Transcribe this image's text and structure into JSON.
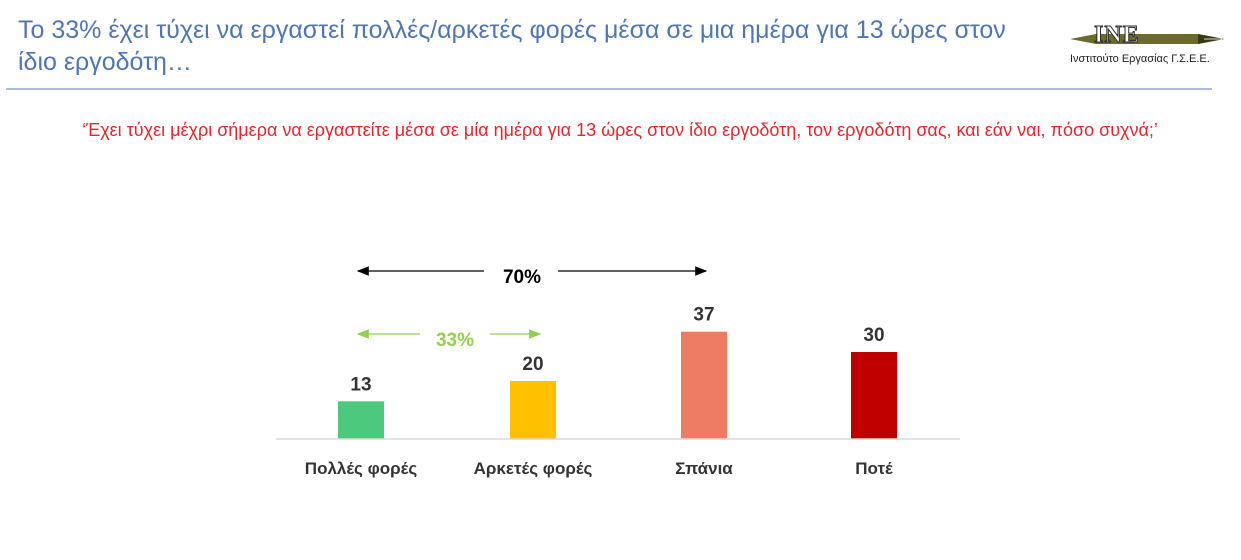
{
  "header": {
    "title": "Το 33% έχει τύχει να εργαστεί πολλές/αρκετές φορές μέσα σε μια ημέρα για 13 ώρες στον ίδιο εργοδότη…",
    "logo_text": "INE",
    "logo_subtitle": "Ινστιτούτο Εργασίας Γ.Σ.Ε.Ε."
  },
  "question": "‘Έχει τύχει μέχρι σήμερα να εργαστείτε μέσα σε μία ημέρα για 13 ώρες στον ίδιο εργοδότη, τον εργοδότη σας, και εάν ναι, πόσο συχνά;’",
  "colors": {
    "title": "#4f75b8",
    "question": "#e8252b",
    "bars": [
      "#4dc97e",
      "#ffc000",
      "#ee7b63",
      "#c00000"
    ],
    "bracket_33": "#92d050",
    "bracket_70": "#000000"
  },
  "chart_data": {
    "type": "bar",
    "categories": [
      "Πολλές φορές",
      "Αρκετές φορές",
      "Σπάνια",
      "Ποτέ"
    ],
    "values": [
      13,
      20,
      37,
      30
    ],
    "ylim": [
      0,
      40
    ],
    "grid": false,
    "annotations": [
      {
        "text": "70%",
        "spans": [
          "Πολλές φορές",
          "Σπάνια"
        ],
        "color": "#000000"
      },
      {
        "text": "33%",
        "spans": [
          "Πολλές φορές",
          "Αρκετές φορές"
        ],
        "color": "#92d050"
      }
    ]
  }
}
